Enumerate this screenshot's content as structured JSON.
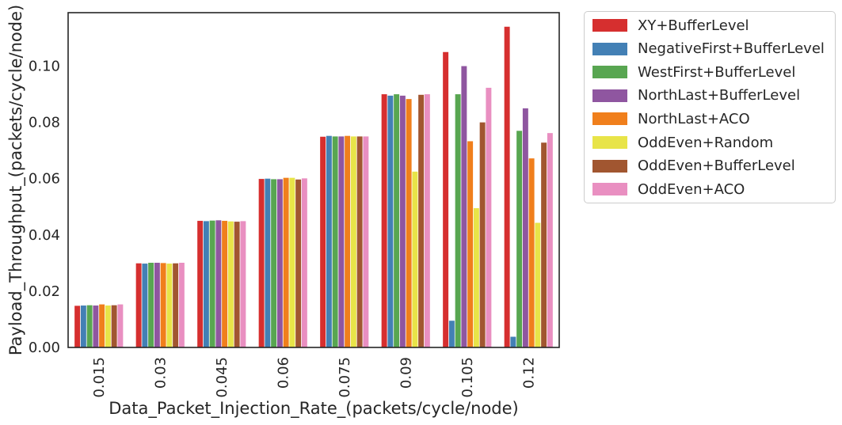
{
  "chart_data": {
    "type": "bar",
    "xlabel": "Data_Packet_Injection_Rate_(packets/cycle/node)",
    "ylabel": "Payload_Throughput_(packets/cycle/node)",
    "ylim": [
      0,
      0.119
    ],
    "yticks": [
      "0.00",
      "0.02",
      "0.04",
      "0.06",
      "0.08",
      "0.10"
    ],
    "categories": [
      "0.015",
      "0.03",
      "0.045",
      "0.06",
      "0.075",
      "0.09",
      "0.105",
      "0.12"
    ],
    "grid": false,
    "legend_position": "outside-top-right",
    "series": [
      {
        "name": "XY+BufferLevel",
        "color": "#d62f2f",
        "values": [
          0.0148,
          0.0299,
          0.045,
          0.0599,
          0.0749,
          0.09,
          0.105,
          0.114
        ]
      },
      {
        "name": "NegativeFirst+BufferLevel",
        "color": "#4380b5",
        "values": [
          0.0149,
          0.0298,
          0.0449,
          0.06,
          0.0752,
          0.0895,
          0.0095,
          0.0038
        ]
      },
      {
        "name": "WestFirst+BufferLevel",
        "color": "#58a651",
        "values": [
          0.015,
          0.0301,
          0.0451,
          0.0598,
          0.075,
          0.09,
          0.09,
          0.077
        ]
      },
      {
        "name": "NorthLast+BufferLevel",
        "color": "#8f56a0",
        "values": [
          0.0149,
          0.0301,
          0.0452,
          0.0598,
          0.075,
          0.0895,
          0.1,
          0.085
        ]
      },
      {
        "name": "NorthLast+ACO",
        "color": "#f07f1c",
        "values": [
          0.0153,
          0.03,
          0.045,
          0.0603,
          0.0752,
          0.0883,
          0.0733,
          0.0672
        ]
      },
      {
        "name": "OddEven+Random",
        "color": "#e8e448",
        "values": [
          0.0149,
          0.0298,
          0.0448,
          0.0603,
          0.075,
          0.0625,
          0.0495,
          0.0443
        ]
      },
      {
        "name": "OddEven+BufferLevel",
        "color": "#a15630",
        "values": [
          0.015,
          0.0299,
          0.0447,
          0.0597,
          0.075,
          0.0898,
          0.08,
          0.0728
        ]
      },
      {
        "name": "OddEven+ACO",
        "color": "#e98fc1",
        "values": [
          0.0153,
          0.0301,
          0.0449,
          0.0601,
          0.075,
          0.09,
          0.0923,
          0.0762
        ]
      }
    ]
  }
}
